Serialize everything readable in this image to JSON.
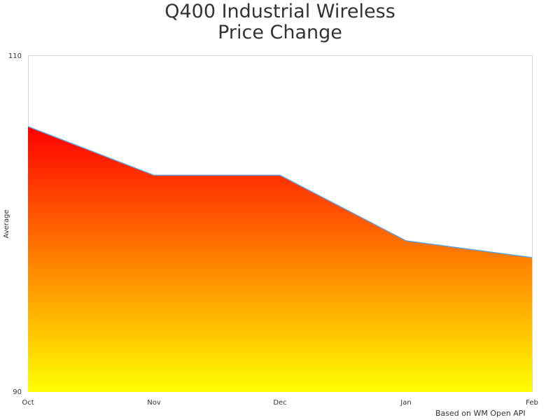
{
  "chart_data": {
    "type": "area",
    "title_lines": [
      "Q400 Industrial Wireless",
      "Price Change"
    ],
    "xlabel": "",
    "ylabel": "Average",
    "categories": [
      "Oct",
      "Nov",
      "Dec",
      "Jan",
      "Feb"
    ],
    "series": [
      {
        "values": [
          105.8,
          102.9,
          102.9,
          99.0,
          98.0
        ]
      }
    ],
    "ylim": [
      90,
      110
    ],
    "yticks": [
      "90",
      "110"
    ],
    "grid": false,
    "legend": "none",
    "fill_gradient": {
      "top": "#ff0000",
      "bottom": "#ffff00"
    },
    "line_color": "#5aa0e0",
    "credit": "Based on WM Open API"
  }
}
